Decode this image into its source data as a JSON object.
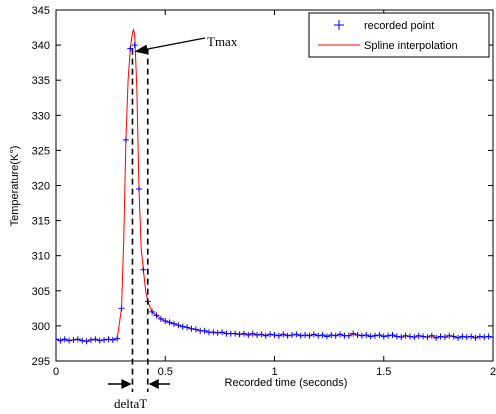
{
  "chart_data": {
    "type": "line",
    "title": "",
    "xlabel": "Recorded time (seconds)",
    "ylabel": "Temperature(K°)",
    "xlim": [
      0,
      2
    ],
    "ylim": [
      295,
      345
    ],
    "xticks": [
      0,
      0.5,
      1,
      1.5,
      2
    ],
    "xtick_labels": [
      "0",
      "0.5",
      "1",
      "1.5",
      "2"
    ],
    "yticks": [
      295,
      300,
      305,
      310,
      315,
      320,
      325,
      330,
      335,
      340,
      345
    ],
    "ytick_labels": [
      "295",
      "300",
      "305",
      "310",
      "315",
      "320",
      "325",
      "330",
      "335",
      "340",
      "345"
    ],
    "grid": false,
    "legend_position": "top-right",
    "series": [
      {
        "name": "recorded point",
        "style": "markers",
        "marker": "+",
        "color": "#0000ff",
        "x": [
          0.0,
          0.02,
          0.04,
          0.06,
          0.08,
          0.1,
          0.12,
          0.14,
          0.16,
          0.18,
          0.2,
          0.22,
          0.24,
          0.26,
          0.28,
          0.3,
          0.32,
          0.34,
          0.36,
          0.38,
          0.4,
          0.42,
          0.44,
          0.46,
          0.48,
          0.5,
          0.52,
          0.54,
          0.56,
          0.58,
          0.6,
          0.62,
          0.64,
          0.66,
          0.68,
          0.7,
          0.72,
          0.74,
          0.76,
          0.78,
          0.8,
          0.82,
          0.84,
          0.86,
          0.88,
          0.9,
          0.92,
          0.94,
          0.96,
          0.98,
          1.0,
          1.02,
          1.04,
          1.06,
          1.08,
          1.1,
          1.12,
          1.14,
          1.16,
          1.18,
          1.2,
          1.22,
          1.24,
          1.26,
          1.28,
          1.3,
          1.32,
          1.34,
          1.36,
          1.38,
          1.4,
          1.42,
          1.44,
          1.46,
          1.48,
          1.5,
          1.52,
          1.54,
          1.56,
          1.58,
          1.6,
          1.62,
          1.64,
          1.66,
          1.68,
          1.7,
          1.72,
          1.74,
          1.76,
          1.78,
          1.8,
          1.82,
          1.84,
          1.86,
          1.88,
          1.9,
          1.92,
          1.94,
          1.96,
          1.98,
          2.0
        ],
        "y": [
          298.1,
          297.9,
          298.1,
          297.9,
          298.0,
          298.1,
          297.9,
          297.8,
          298.0,
          298.1,
          297.9,
          298.0,
          298.1,
          298.0,
          298.2,
          302.5,
          326.5,
          339.5,
          340.0,
          319.5,
          308.0,
          303.5,
          302.0,
          301.5,
          301.0,
          300.7,
          300.5,
          300.3,
          300.1,
          299.9,
          299.8,
          299.6,
          299.5,
          299.3,
          299.3,
          299.1,
          299.1,
          299.0,
          299.1,
          298.9,
          298.9,
          298.9,
          298.8,
          298.9,
          298.7,
          298.9,
          298.7,
          298.8,
          298.6,
          298.8,
          298.7,
          298.6,
          298.8,
          298.6,
          298.7,
          298.8,
          298.6,
          298.7,
          298.6,
          298.8,
          298.6,
          298.7,
          298.5,
          298.7,
          298.6,
          298.8,
          298.6,
          298.6,
          298.9,
          298.7,
          298.6,
          298.7,
          298.5,
          298.6,
          298.7,
          298.5,
          298.6,
          298.7,
          298.5,
          298.4,
          298.6,
          298.5,
          298.4,
          298.6,
          298.5,
          298.4,
          298.6,
          298.3,
          298.5,
          298.4,
          298.6,
          298.5,
          298.3,
          298.5,
          298.4,
          298.5,
          298.3,
          298.5,
          298.4,
          298.5,
          298.4
        ]
      },
      {
        "name": "Spline interpolation",
        "style": "line",
        "color": "#ff0000",
        "x": [
          0.0,
          0.02,
          0.04,
          0.06,
          0.08,
          0.1,
          0.12,
          0.14,
          0.16,
          0.18,
          0.2,
          0.22,
          0.24,
          0.26,
          0.28,
          0.3,
          0.31,
          0.32,
          0.33,
          0.34,
          0.35,
          0.355,
          0.36,
          0.37,
          0.38,
          0.39,
          0.4,
          0.41,
          0.42,
          0.44,
          0.46,
          0.48,
          0.5,
          0.52,
          0.54,
          0.56,
          0.58,
          0.6,
          0.62,
          0.64,
          0.66,
          0.68,
          0.7,
          0.72,
          0.74,
          0.76,
          0.78,
          0.8,
          0.82,
          0.84,
          0.86,
          0.88,
          0.9,
          0.92,
          0.94,
          0.96,
          0.98,
          1.0,
          1.02,
          1.04,
          1.06,
          1.08,
          1.1,
          1.12,
          1.14,
          1.16,
          1.18,
          1.2,
          1.22,
          1.24,
          1.26,
          1.28,
          1.3,
          1.32,
          1.34,
          1.36,
          1.38,
          1.4,
          1.42,
          1.44,
          1.46,
          1.48,
          1.5,
          1.52,
          1.54,
          1.56,
          1.58,
          1.6,
          1.62,
          1.64,
          1.66,
          1.68,
          1.7,
          1.72,
          1.74,
          1.76,
          1.78,
          1.8,
          1.82,
          1.84,
          1.86,
          1.88,
          1.9,
          1.92,
          1.94,
          1.96,
          1.98,
          2.0
        ],
        "y": [
          298.1,
          297.9,
          298.1,
          297.9,
          298.0,
          298.1,
          297.9,
          297.8,
          298.0,
          298.1,
          297.9,
          298.0,
          298.1,
          298.0,
          298.2,
          302.5,
          312.0,
          326.5,
          335.0,
          339.5,
          341.8,
          342.2,
          341.5,
          334.0,
          319.5,
          311.0,
          308.0,
          305.0,
          303.5,
          302.0,
          301.5,
          301.0,
          300.7,
          300.5,
          300.3,
          300.1,
          299.9,
          299.8,
          299.6,
          299.5,
          299.3,
          299.3,
          299.1,
          299.1,
          299.0,
          299.1,
          298.9,
          298.9,
          298.9,
          298.8,
          298.9,
          298.7,
          298.9,
          298.7,
          298.8,
          298.6,
          298.8,
          298.7,
          298.6,
          298.8,
          298.6,
          298.7,
          298.8,
          298.6,
          298.7,
          298.6,
          298.8,
          298.6,
          298.7,
          298.5,
          298.7,
          298.6,
          298.8,
          298.6,
          298.6,
          298.9,
          298.7,
          298.6,
          298.7,
          298.5,
          298.6,
          298.7,
          298.5,
          298.6,
          298.7,
          298.5,
          298.4,
          298.6,
          298.5,
          298.4,
          298.6,
          298.5,
          298.4,
          298.6,
          298.3,
          298.5,
          298.4,
          298.6,
          298.5,
          298.3,
          298.5,
          298.4,
          298.5,
          298.3,
          298.5,
          298.4,
          298.5,
          298.4
        ]
      }
    ],
    "annotations": [
      {
        "id": "tmax",
        "text": "Tmax",
        "points_to": {
          "x": 0.35,
          "y": 339.5
        }
      },
      {
        "id": "deltat",
        "text": "deltaT",
        "dashed_x": [
          0.35,
          0.42
        ],
        "dashed_from_y": 339.5
      }
    ]
  }
}
